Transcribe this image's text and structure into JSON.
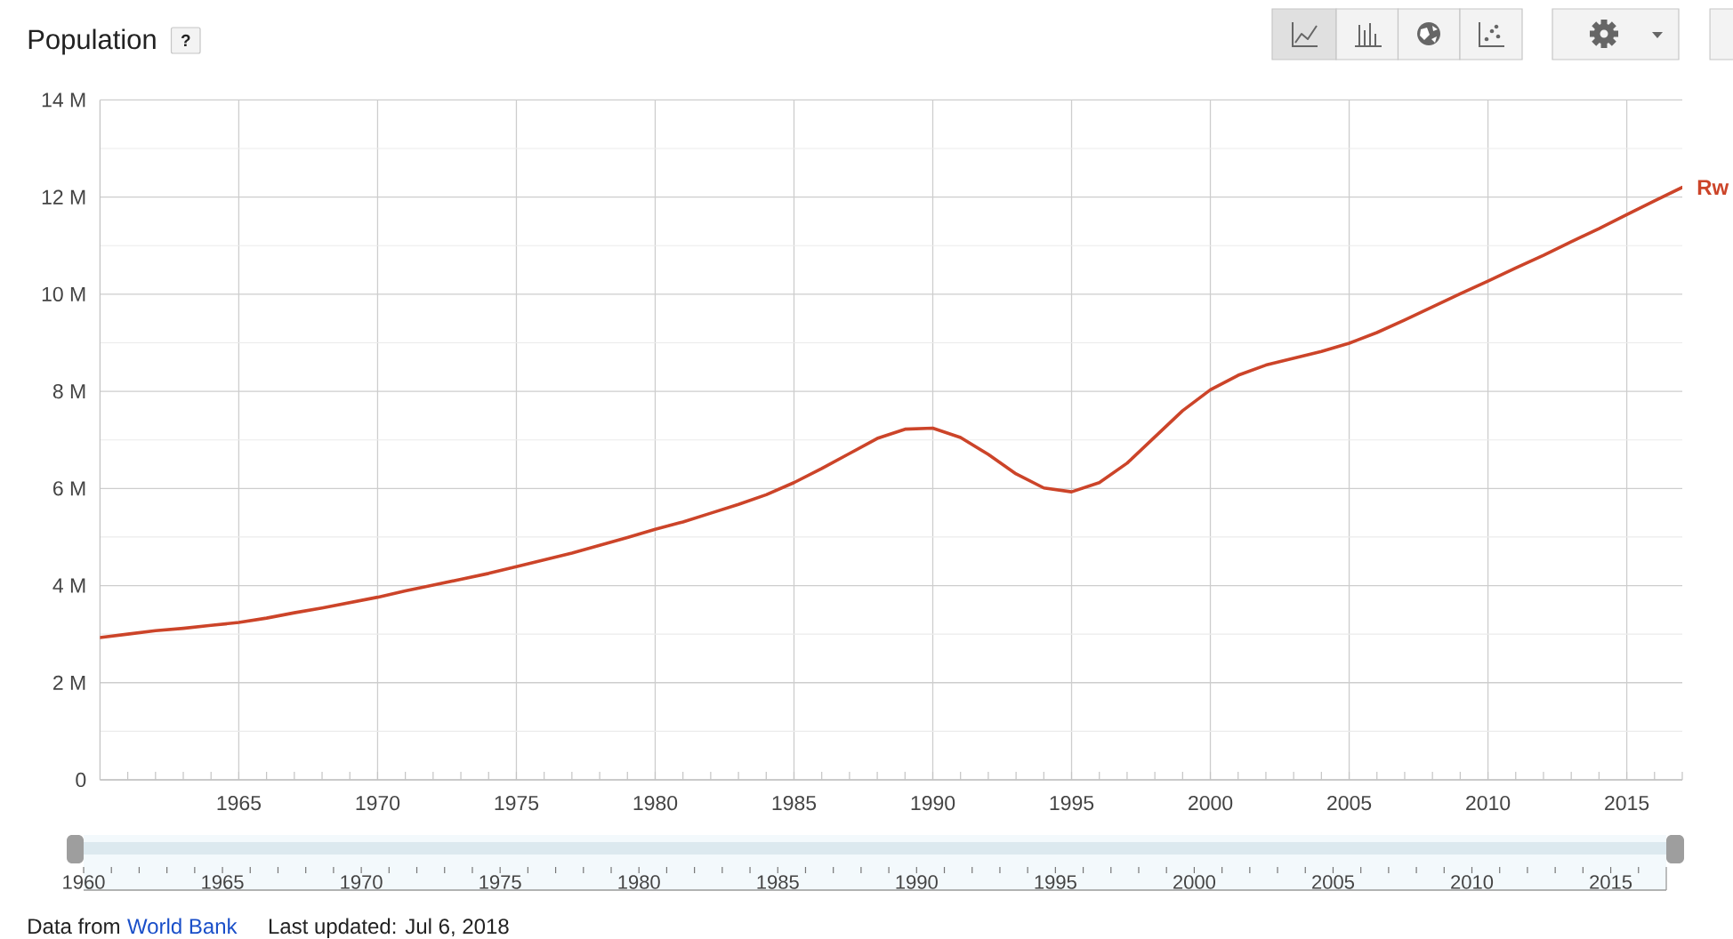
{
  "chart_data": [
    {
      "type": "line",
      "title": "Population",
      "x": [
        1960,
        1961,
        1962,
        1963,
        1964,
        1965,
        1966,
        1967,
        1968,
        1969,
        1970,
        1971,
        1972,
        1973,
        1974,
        1975,
        1976,
        1977,
        1978,
        1979,
        1980,
        1981,
        1982,
        1983,
        1984,
        1985,
        1986,
        1987,
        1988,
        1989,
        1990,
        1991,
        1992,
        1993,
        1994,
        1995,
        1996,
        1997,
        1998,
        1999,
        2000,
        2001,
        2002,
        2003,
        2004,
        2005,
        2006,
        2007,
        2008,
        2009,
        2010,
        2011,
        2012,
        2013,
        2014,
        2015,
        2016,
        2017
      ],
      "series": [
        {
          "name": "Rw",
          "color": "#cc4429",
          "values": [
            2930000,
            3000000,
            3070000,
            3120000,
            3180000,
            3240000,
            3330000,
            3440000,
            3540000,
            3650000,
            3760000,
            3890000,
            4010000,
            4130000,
            4250000,
            4390000,
            4530000,
            4670000,
            4830000,
            4990000,
            5160000,
            5310000,
            5490000,
            5670000,
            5870000,
            6120000,
            6410000,
            6720000,
            7030000,
            7220000,
            7240000,
            7050000,
            6700000,
            6300000,
            6010000,
            5930000,
            6120000,
            6520000,
            7060000,
            7600000,
            8030000,
            8330000,
            8540000,
            8680000,
            8820000,
            8990000,
            9210000,
            9470000,
            9740000,
            10010000,
            10270000,
            10540000,
            10800000,
            11080000,
            11350000,
            11640000,
            11920000,
            12200000
          ]
        }
      ],
      "xlim": [
        1960,
        2017
      ],
      "xticks": [
        {
          "value": 1961,
          "label": null
        },
        {
          "value": 1962,
          "label": null
        },
        {
          "value": 1963,
          "label": null
        },
        {
          "value": 1964,
          "label": null
        },
        1965,
        {
          "value": 1966,
          "label": null
        },
        {
          "value": 1967,
          "label": null
        },
        {
          "value": 1968,
          "label": null
        },
        {
          "value": 1969,
          "label": null
        },
        1970,
        {
          "value": 1971,
          "label": null
        },
        {
          "value": 1972,
          "label": null
        },
        {
          "value": 1973,
          "label": null
        },
        {
          "value": 1974,
          "label": null
        },
        1975,
        {
          "value": 1976,
          "label": null
        },
        {
          "value": 1977,
          "label": null
        },
        {
          "value": 1978,
          "label": null
        },
        {
          "value": 1979,
          "label": null
        },
        1980,
        {
          "value": 1981,
          "label": null
        },
        {
          "value": 1982,
          "label": null
        },
        {
          "value": 1983,
          "label": null
        },
        {
          "value": 1984,
          "label": null
        },
        1985,
        {
          "value": 1986,
          "label": null
        },
        {
          "value": 1987,
          "label": null
        },
        {
          "value": 1988,
          "label": null
        },
        {
          "value": 1989,
          "label": null
        },
        1990,
        {
          "value": 1991,
          "label": null
        },
        {
          "value": 1992,
          "label": null
        },
        {
          "value": 1993,
          "label": null
        },
        {
          "value": 1994,
          "label": null
        },
        1995,
        {
          "value": 1996,
          "label": null
        },
        {
          "value": 1997,
          "label": null
        },
        {
          "value": 1998,
          "label": null
        },
        {
          "value": 1999,
          "label": null
        },
        2000,
        {
          "value": 2001,
          "label": null
        },
        {
          "value": 2002,
          "label": null
        },
        {
          "value": 2003,
          "label": null
        },
        {
          "value": 2004,
          "label": null
        },
        2005,
        {
          "value": 2006,
          "label": null
        },
        {
          "value": 2007,
          "label": null
        },
        {
          "value": 2008,
          "label": null
        },
        {
          "value": 2009,
          "label": null
        },
        2010,
        {
          "value": 2011,
          "label": null
        },
        {
          "value": 2012,
          "label": null
        },
        {
          "value": 2013,
          "label": null
        },
        {
          "value": 2014,
          "label": null
        },
        2015,
        {
          "value": 2016,
          "label": null
        },
        {
          "value": 2017,
          "label": null
        }
      ],
      "ylim": [
        0,
        14000000
      ],
      "yticks": [
        0,
        {
          "value": 1000000,
          "label": null
        },
        {
          "value": 2000000,
          "label": "2 M"
        },
        {
          "value": 3000000,
          "label": null
        },
        {
          "value": 4000000,
          "label": "4 M"
        },
        {
          "value": 5000000,
          "label": null
        },
        {
          "value": 6000000,
          "label": "6 M"
        },
        {
          "value": 7000000,
          "label": null
        },
        {
          "value": 8000000,
          "label": "8 M"
        },
        {
          "value": 9000000,
          "label": null
        },
        {
          "value": 10000000,
          "label": "10 M"
        },
        {
          "value": 11000000,
          "label": null
        },
        {
          "value": 12000000,
          "label": "12 M"
        },
        {
          "value": 13000000,
          "label": null
        },
        {
          "value": 14000000,
          "label": "14 M"
        }
      ],
      "grid": true,
      "annotations": [
        "?",
        "Data from",
        "World Bank",
        "Last updated: Jul 6, 2018"
      ]
    },
    {
      "type": "bar",
      "orientation": "horizontal",
      "categories": [
        null
      ],
      "base": [
        1960
      ],
      "values": [
        57
      ],
      "color": "#dce9ef",
      "xlim": [
        1960,
        2017
      ],
      "xticks": [
        1960,
        {
          "value": 1961,
          "label": null
        },
        {
          "value": 1962,
          "label": null
        },
        {
          "value": 1963,
          "label": null
        },
        {
          "value": 1964,
          "label": null
        },
        1965,
        {
          "value": 1966,
          "label": null
        },
        {
          "value": 1967,
          "label": null
        },
        {
          "value": 1968,
          "label": null
        },
        {
          "value": 1969,
          "label": null
        },
        1970,
        {
          "value": 1971,
          "label": null
        },
        {
          "value": 1972,
          "label": null
        },
        {
          "value": 1973,
          "label": null
        },
        {
          "value": 1974,
          "label": null
        },
        1975,
        {
          "value": 1976,
          "label": null
        },
        {
          "value": 1977,
          "label": null
        },
        {
          "value": 1978,
          "label": null
        },
        {
          "value": 1979,
          "label": null
        },
        1980,
        {
          "value": 1981,
          "label": null
        },
        {
          "value": 1982,
          "label": null
        },
        {
          "value": 1983,
          "label": null
        },
        {
          "value": 1984,
          "label": null
        },
        1985,
        {
          "value": 1986,
          "label": null
        },
        {
          "value": 1987,
          "label": null
        },
        {
          "value": 1988,
          "label": null
        },
        {
          "value": 1989,
          "label": null
        },
        1990,
        {
          "value": 1991,
          "label": null
        },
        {
          "value": 1992,
          "label": null
        },
        {
          "value": 1993,
          "label": null
        },
        {
          "value": 1994,
          "label": null
        },
        1995,
        {
          "value": 1996,
          "label": null
        },
        {
          "value": 1997,
          "label": null
        },
        {
          "value": 1998,
          "label": null
        },
        {
          "value": 1999,
          "label": null
        },
        2000,
        {
          "value": 2001,
          "label": null
        },
        {
          "value": 2002,
          "label": null
        },
        {
          "value": 2003,
          "label": null
        },
        {
          "value": 2004,
          "label": null
        },
        2005,
        {
          "value": 2006,
          "label": null
        },
        {
          "value": 2007,
          "label": null
        },
        {
          "value": 2008,
          "label": null
        },
        {
          "value": 2009,
          "label": null
        },
        2010,
        {
          "value": 2011,
          "label": null
        },
        {
          "value": 2012,
          "label": null
        },
        {
          "value": 2013,
          "label": null
        },
        {
          "value": 2014,
          "label": null
        },
        2015,
        {
          "value": 2016,
          "label": null
        }
      ],
      "tick_labels": "x"
    }
  ]
}
